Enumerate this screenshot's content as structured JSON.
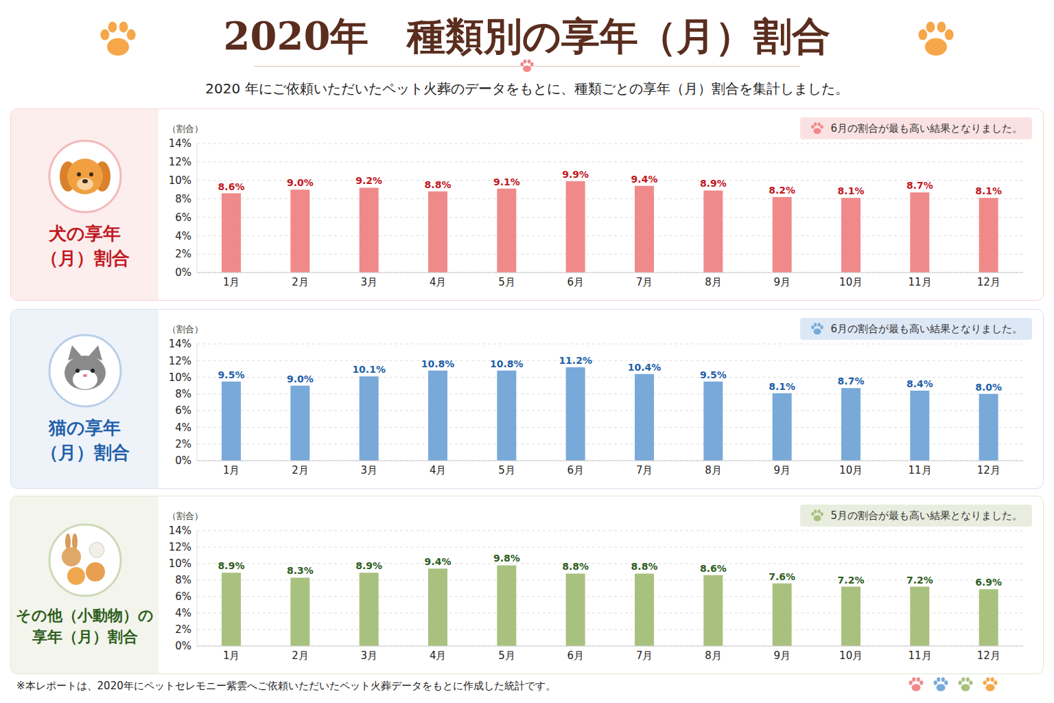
{
  "title": "2020年　種類別の享年（月）割合",
  "subtitle": "2020 年にご依頼いただいたペット火葬のデータをもとに、種類ごとの享年（月）割合を集計しました。",
  "footnote": "※本レポートは、2020年にペットセレモニー紫雲へご依頼いただいたペット火葬データをもとに作成した統計です。",
  "chart_data": [
    {
      "type": "bar",
      "title": "犬の享年（月）割合",
      "annotation": "6月の割合が最も高い結果となりました。",
      "y_label": "（割合）",
      "categories": [
        "1月",
        "2月",
        "3月",
        "4月",
        "5月",
        "6月",
        "7月",
        "8月",
        "9月",
        "10月",
        "11月",
        "12月"
      ],
      "values": [
        8.6,
        9.0,
        9.2,
        8.8,
        9.1,
        9.9,
        9.4,
        8.9,
        8.2,
        8.1,
        8.7,
        8.1
      ],
      "value_labels": [
        "8.6%",
        "9.0%",
        "9.2%",
        "8.8%",
        "9.1%",
        "9.9%",
        "9.4%",
        "8.9%",
        "8.2%",
        "8.1%",
        "8.7%",
        "8.1%"
      ],
      "color": "#f08a8a",
      "ylim": [
        0,
        14
      ],
      "yticks": [
        {
          "value": 0,
          "label": "0%"
        },
        {
          "value": 2,
          "label": "2%"
        },
        {
          "value": 4,
          "label": "4%"
        },
        {
          "value": 6,
          "label": "6%"
        },
        {
          "value": 8,
          "label": "8%"
        },
        {
          "value": 10,
          "label": "10%"
        },
        {
          "value": 12,
          "label": "12%"
        },
        {
          "value": 14,
          "label": "14%"
        }
      ],
      "grid": true,
      "data_labels": true
    },
    {
      "type": "bar",
      "title": "猫の享年（月）割合",
      "annotation": "6月の割合が最も高い結果となりました。",
      "y_label": "（割合）",
      "categories": [
        "1月",
        "2月",
        "3月",
        "4月",
        "5月",
        "6月",
        "7月",
        "8月",
        "9月",
        "10月",
        "11月",
        "12月"
      ],
      "values": [
        9.5,
        9.0,
        10.1,
        10.8,
        10.8,
        11.2,
        10.4,
        9.5,
        8.1,
        8.7,
        8.4,
        8.0
      ],
      "value_labels": [
        "9.5%",
        "9.0%",
        "10.1%",
        "10.8%",
        "10.8%",
        "11.2%",
        "10.4%",
        "9.5%",
        "8.1%",
        "8.7%",
        "8.4%",
        "8.0%"
      ],
      "color": "#78a9d9",
      "ylim": [
        0,
        14
      ],
      "yticks": [
        {
          "value": 0,
          "label": "0%"
        },
        {
          "value": 2,
          "label": "2%"
        },
        {
          "value": 4,
          "label": "4%"
        },
        {
          "value": 6,
          "label": "6%"
        },
        {
          "value": 8,
          "label": "8%"
        },
        {
          "value": 10,
          "label": "10%"
        },
        {
          "value": 12,
          "label": "12%"
        },
        {
          "value": 14,
          "label": "14%"
        }
      ],
      "grid": true,
      "data_labels": true
    },
    {
      "type": "bar",
      "title": "その他（小動物）の享年（月）割合",
      "annotation": "5月の割合が最も高い結果となりました。",
      "y_label": "（割合）",
      "categories": [
        "1月",
        "2月",
        "3月",
        "4月",
        "5月",
        "6月",
        "7月",
        "8月",
        "9月",
        "10月",
        "11月",
        "12月"
      ],
      "values": [
        8.9,
        8.3,
        8.9,
        9.4,
        9.8,
        8.8,
        8.8,
        8.6,
        7.6,
        7.2,
        7.2,
        6.9
      ],
      "value_labels": [
        "8.9%",
        "8.3%",
        "8.9%",
        "9.4%",
        "9.8%",
        "8.8%",
        "8.8%",
        "8.6%",
        "7.6%",
        "7.2%",
        "7.2%",
        "6.9%"
      ],
      "color": "#a9c17e",
      "ylim": [
        0,
        14
      ],
      "yticks": [
        {
          "value": 0,
          "label": "0%"
        },
        {
          "value": 2,
          "label": "2%"
        },
        {
          "value": 4,
          "label": "4%"
        },
        {
          "value": 6,
          "label": "6%"
        },
        {
          "value": 8,
          "label": "8%"
        },
        {
          "value": 10,
          "label": "10%"
        },
        {
          "value": 12,
          "label": "12%"
        },
        {
          "value": 14,
          "label": "14%"
        }
      ],
      "grid": true,
      "data_labels": true
    }
  ]
}
